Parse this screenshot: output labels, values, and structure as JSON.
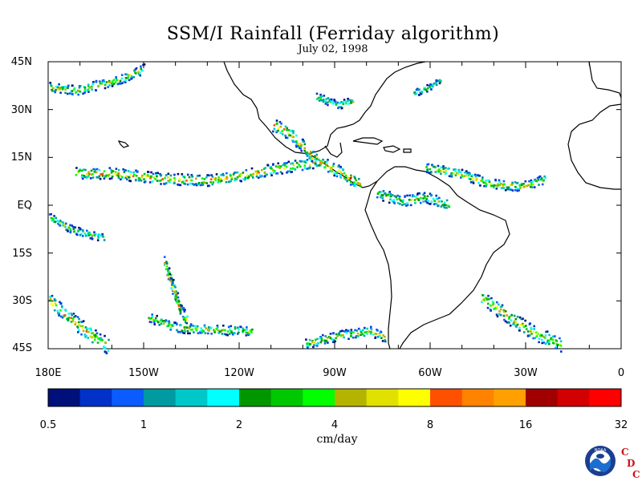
{
  "title": "SSM/I Rainfall (Ferriday algorithm)",
  "subtitle": "July 02, 1998",
  "lat_labels": [
    "45N",
    "30N",
    "15N",
    "EQ",
    "15S",
    "30S",
    "45S"
  ],
  "lon_labels": [
    "180E",
    "150W",
    "120W",
    "90W",
    "60W",
    "30W",
    "0"
  ],
  "colorbar": {
    "unit_label": "cm/day",
    "tick_labels": [
      "0.5",
      "1",
      "2",
      "4",
      "8",
      "16",
      "32"
    ],
    "colors": [
      "#00107a",
      "#0032c8",
      "#0a5cff",
      "#009aa0",
      "#00c8c8",
      "#00ffff",
      "#009600",
      "#00c800",
      "#00ff00",
      "#b4b400",
      "#e1e100",
      "#ffff00",
      "#ff5000",
      "#ff8200",
      "#ffa000",
      "#a00000",
      "#d20000",
      "#ff0000"
    ]
  },
  "logo": {
    "agency_text": "NOAA",
    "lab_letters": [
      "C",
      "D",
      "C"
    ]
  }
}
